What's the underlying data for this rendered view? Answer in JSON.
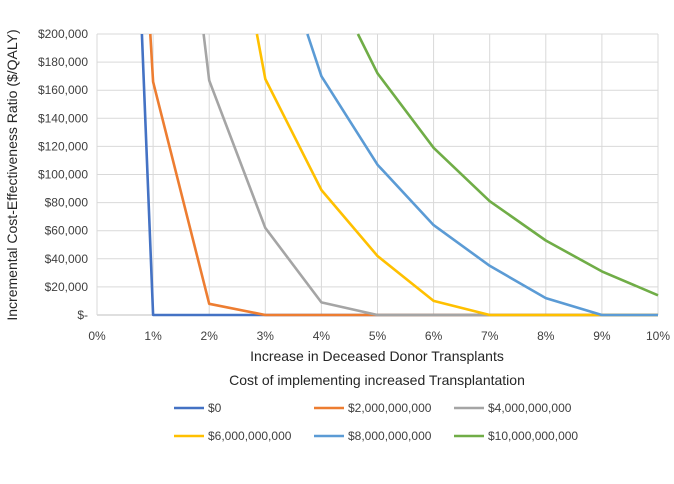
{
  "chart_data": {
    "type": "line",
    "title": "",
    "xlabel": "Increase in Deceased Donor Transplants",
    "xlabel2": "Cost of implementing increased Transplantation",
    "ylabel": "Incremental Cost-Effectiveness Ratio ($/QALY)",
    "xlim": [
      0,
      10
    ],
    "ylim": [
      0,
      200000
    ],
    "grid": true,
    "legend_position": "bottom",
    "x_ticks": [
      "0%",
      "1%",
      "2%",
      "3%",
      "4%",
      "5%",
      "6%",
      "7%",
      "8%",
      "9%",
      "10%"
    ],
    "y_ticks": [
      "$-",
      "$20,000",
      "$40,000",
      "$60,000",
      "$80,000",
      "$100,000",
      "$120,000",
      "$140,000",
      "$160,000",
      "$180,000",
      "$200,000"
    ],
    "series": [
      {
        "name": "$0",
        "color": "#4472C4",
        "points": [
          [
            0.8,
            200000
          ],
          [
            1,
            0
          ],
          [
            2,
            0
          ],
          [
            3,
            0
          ],
          [
            4,
            0
          ],
          [
            5,
            0
          ],
          [
            6,
            0
          ],
          [
            7,
            0
          ],
          [
            8,
            0
          ],
          [
            9,
            0
          ],
          [
            10,
            0
          ]
        ]
      },
      {
        "name": "$2,000,000,000",
        "color": "#ED7D31",
        "points": [
          [
            0.95,
            200000
          ],
          [
            1,
            166000
          ],
          [
            2,
            8000
          ],
          [
            3,
            0
          ],
          [
            4,
            0
          ],
          [
            5,
            0
          ],
          [
            6,
            0
          ],
          [
            7,
            0
          ],
          [
            8,
            0
          ],
          [
            9,
            0
          ],
          [
            10,
            0
          ]
        ]
      },
      {
        "name": "$4,000,000,000",
        "color": "#A5A5A5",
        "points": [
          [
            1.9,
            200000
          ],
          [
            2,
            167000
          ],
          [
            3,
            62000
          ],
          [
            4,
            9000
          ],
          [
            5,
            0
          ],
          [
            6,
            0
          ],
          [
            7,
            0
          ],
          [
            8,
            0
          ],
          [
            9,
            0
          ],
          [
            10,
            0
          ]
        ]
      },
      {
        "name": "$6,000,000,000",
        "color": "#FFC000",
        "points": [
          [
            2.85,
            200000
          ],
          [
            3,
            168000
          ],
          [
            4,
            89000
          ],
          [
            5,
            42000
          ],
          [
            6,
            10000
          ],
          [
            7,
            0
          ],
          [
            8,
            0
          ],
          [
            9,
            0
          ],
          [
            10,
            0
          ]
        ]
      },
      {
        "name": "$8,000,000,000",
        "color": "#5B9BD5",
        "points": [
          [
            3.75,
            200000
          ],
          [
            4,
            170000
          ],
          [
            5,
            107000
          ],
          [
            6,
            64000
          ],
          [
            7,
            35000
          ],
          [
            8,
            12000
          ],
          [
            9,
            0
          ],
          [
            10,
            0
          ]
        ]
      },
      {
        "name": "$10,000,000,000",
        "color": "#70AD47",
        "points": [
          [
            4.65,
            200000
          ],
          [
            5,
            172000
          ],
          [
            6,
            119000
          ],
          [
            7,
            81000
          ],
          [
            8,
            53000
          ],
          [
            9,
            31000
          ],
          [
            10,
            14000
          ]
        ]
      }
    ]
  }
}
